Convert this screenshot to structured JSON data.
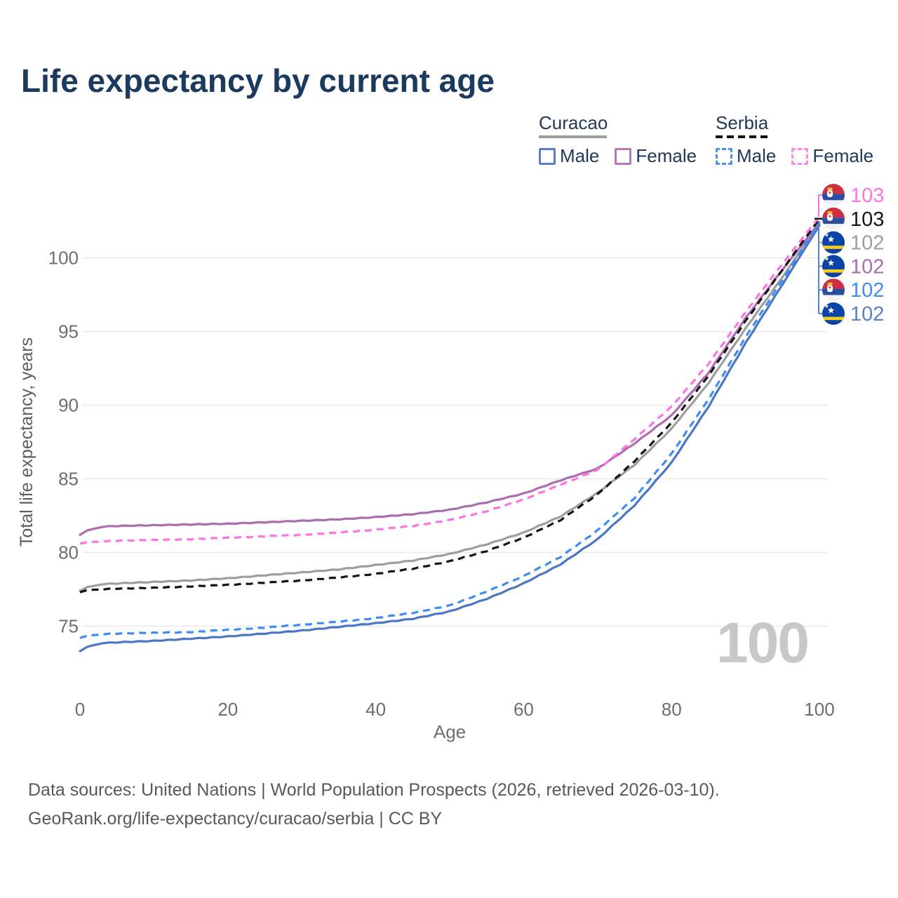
{
  "page": {
    "title": "Life expectancy by current age"
  },
  "legend": {
    "groups": [
      {
        "label": "Curacao",
        "line_style": "solid",
        "underline_color": "#9e9e9e",
        "items": [
          {
            "label": "Male",
            "color": "#5b7fc7"
          },
          {
            "label": "Female",
            "color": "#b878b8"
          }
        ]
      },
      {
        "label": "Serbia",
        "line_style": "dashed",
        "underline_color": "#111111",
        "items": [
          {
            "label": "Male",
            "color": "#4a90f7"
          },
          {
            "label": "Female",
            "color": "#ff8ae5"
          }
        ]
      }
    ]
  },
  "chart_data": {
    "type": "line",
    "title": "Life expectancy by current age",
    "xlabel": "Age",
    "ylabel": "Total life expectancy, years",
    "x_ticks": [
      0,
      20,
      40,
      60,
      80,
      100
    ],
    "y_ticks": [
      75,
      80,
      85,
      90,
      95,
      100
    ],
    "xlim": [
      0,
      100
    ],
    "ylim": [
      73,
      103.5
    ],
    "grid": "horizontal",
    "legend_position": "top-right",
    "age_watermark": "100",
    "x": [
      0,
      1,
      3,
      5,
      10,
      15,
      20,
      25,
      30,
      35,
      40,
      45,
      50,
      55,
      60,
      65,
      70,
      75,
      80,
      85,
      90,
      95,
      100
    ],
    "series": [
      {
        "name": "Curacao — Total",
        "country": "Curacao",
        "sex": "Total",
        "color": "#9e9e9e",
        "dash": false,
        "values": [
          77.4,
          77.65,
          77.85,
          77.9,
          78.0,
          78.1,
          78.25,
          78.45,
          78.65,
          78.85,
          79.15,
          79.45,
          79.9,
          80.55,
          81.35,
          82.45,
          84.05,
          85.95,
          88.4,
          91.5,
          95.2,
          98.7,
          102.35
        ],
        "end_value": 102
      },
      {
        "name": "Curacao — Female",
        "country": "Curacao",
        "sex": "Female",
        "color": "#ad6cae",
        "dash": false,
        "values": [
          81.2,
          81.5,
          81.75,
          81.8,
          81.85,
          81.9,
          81.95,
          82.05,
          82.15,
          82.25,
          82.4,
          82.6,
          82.9,
          83.4,
          84.0,
          84.9,
          85.7,
          87.4,
          89.3,
          92.2,
          95.9,
          99.2,
          102.4
        ],
        "end_value": 102
      },
      {
        "name": "Curacao — Male",
        "country": "Curacao",
        "sex": "Male",
        "color": "#4b76c4",
        "dash": false,
        "values": [
          73.3,
          73.6,
          73.85,
          73.9,
          74.0,
          74.15,
          74.3,
          74.5,
          74.7,
          74.95,
          75.2,
          75.5,
          76.0,
          76.85,
          77.9,
          79.2,
          80.9,
          83.2,
          86.1,
          89.9,
          94.2,
          98.2,
          102.2
        ],
        "end_value": 102
      },
      {
        "name": "Serbia — Total",
        "country": "Serbia",
        "sex": "Total",
        "color": "#141414",
        "dash": true,
        "values": [
          77.3,
          77.45,
          77.5,
          77.55,
          77.6,
          77.7,
          77.8,
          77.95,
          78.1,
          78.3,
          78.55,
          78.9,
          79.4,
          80.1,
          81.0,
          82.2,
          83.95,
          86.2,
          88.8,
          92.0,
          95.7,
          99.2,
          102.65
        ],
        "end_value": 103
      },
      {
        "name": "Serbia — Female",
        "country": "Serbia",
        "sex": "Female",
        "color": "#fb74e4",
        "dash": true,
        "values": [
          80.6,
          80.7,
          80.75,
          80.8,
          80.85,
          80.9,
          81.0,
          81.1,
          81.2,
          81.35,
          81.55,
          81.8,
          82.2,
          82.8,
          83.6,
          84.6,
          85.6,
          87.7,
          89.9,
          92.8,
          96.3,
          99.6,
          102.8
        ],
        "end_value": 103
      },
      {
        "name": "Serbia — Male",
        "country": "Serbia",
        "sex": "Male",
        "color": "#3e8df5",
        "dash": true,
        "values": [
          74.2,
          74.35,
          74.45,
          74.5,
          74.55,
          74.6,
          74.75,
          74.9,
          75.1,
          75.3,
          75.55,
          75.9,
          76.4,
          77.35,
          78.4,
          79.7,
          81.5,
          83.7,
          86.7,
          90.4,
          94.6,
          98.5,
          102.4
        ],
        "end_value": 102
      }
    ],
    "end_labels": [
      {
        "flag": "serbia",
        "label": "103",
        "color": "#fb74e4",
        "series": "Serbia — Female"
      },
      {
        "flag": "serbia",
        "label": "103",
        "color": "#141414",
        "series": "Serbia — Total"
      },
      {
        "flag": "curacao",
        "label": "102",
        "color": "#9e9e9e",
        "series": "Curacao — Total"
      },
      {
        "flag": "curacao",
        "label": "102",
        "color": "#ad6cae",
        "series": "Curacao — Female"
      },
      {
        "flag": "serbia",
        "label": "102",
        "color": "#3e8df5",
        "series": "Serbia — Male"
      },
      {
        "flag": "curacao",
        "label": "102",
        "color": "#5b7fc7",
        "series": "Curacao — Male"
      }
    ]
  },
  "footer": {
    "line1": "Data sources: United Nations | World Population Prospects (2026, retrieved 2026-03-10).",
    "line2": "GeoRank.org/life-expectancy/curacao/serbia | CC BY"
  }
}
